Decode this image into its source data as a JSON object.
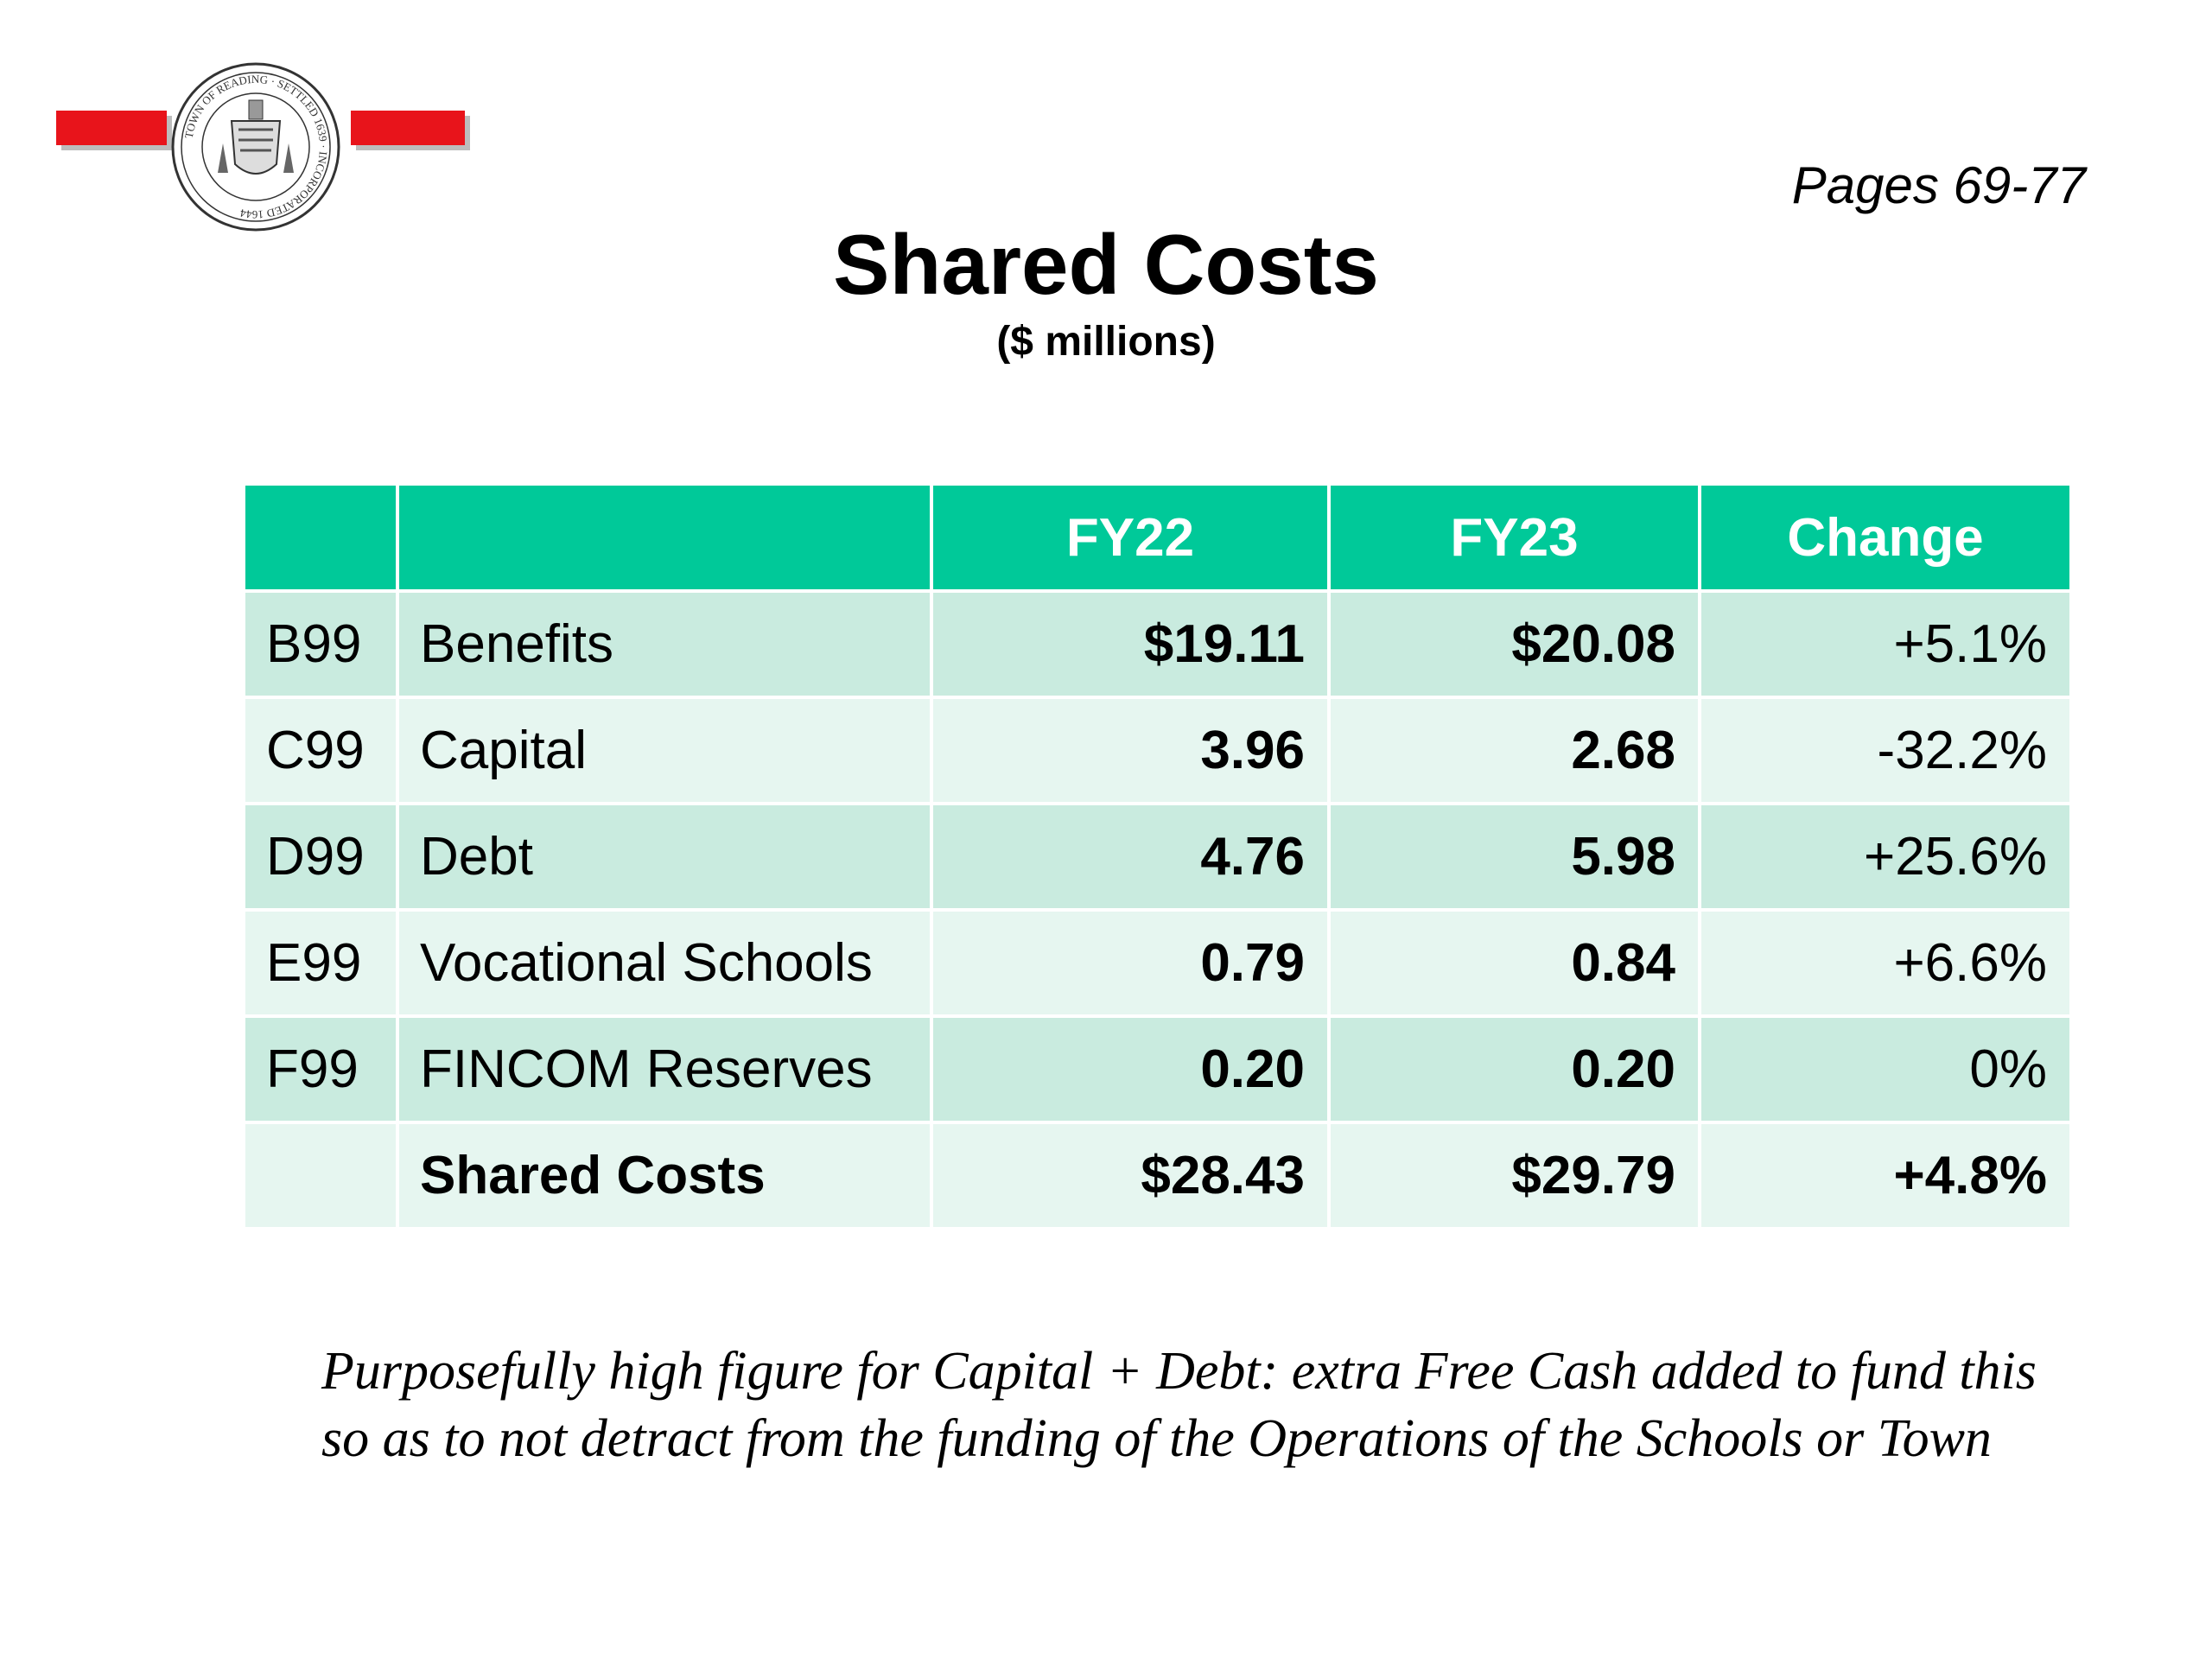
{
  "header": {
    "pages": "Pages 69-77",
    "title": "Shared Costs",
    "subtitle": "($ millions)",
    "seal_text": "TOWN OF READING · SETTLED 1639 · INCORPORATED 1644"
  },
  "table": {
    "columns": [
      "",
      "",
      "FY22",
      "FY23",
      "Change"
    ],
    "rows": [
      {
        "code": "B99",
        "label": "Benefits",
        "fy22": "$19.11",
        "fy23": "$20.08",
        "change": "+5.1%"
      },
      {
        "code": "C99",
        "label": "Capital",
        "fy22": "3.96",
        "fy23": "2.68",
        "change": "-32.2%"
      },
      {
        "code": "D99",
        "label": "Debt",
        "fy22": "4.76",
        "fy23": "5.98",
        "change": "+25.6%"
      },
      {
        "code": "E99",
        "label": "Vocational Schools",
        "fy22": "0.79",
        "fy23": "0.84",
        "change": "+6.6%"
      },
      {
        "code": "F99",
        "label": "FINCOM Reserves",
        "fy22": "0.20",
        "fy23": "0.20",
        "change": "0%"
      },
      {
        "code": "",
        "label": "Shared Costs",
        "fy22": "$28.43",
        "fy23": "$29.79",
        "change": "+4.8%"
      }
    ]
  },
  "note": "Purposefully high figure for Capital + Debt: extra Free Cash added to fund this so as to not detract from the funding of the Operations of the Schools or Town",
  "colors": {
    "header_bg": "#00c999",
    "row_dark": "#c9ebdf",
    "row_light": "#e6f6f0",
    "logo_bar": "#e8141b"
  }
}
